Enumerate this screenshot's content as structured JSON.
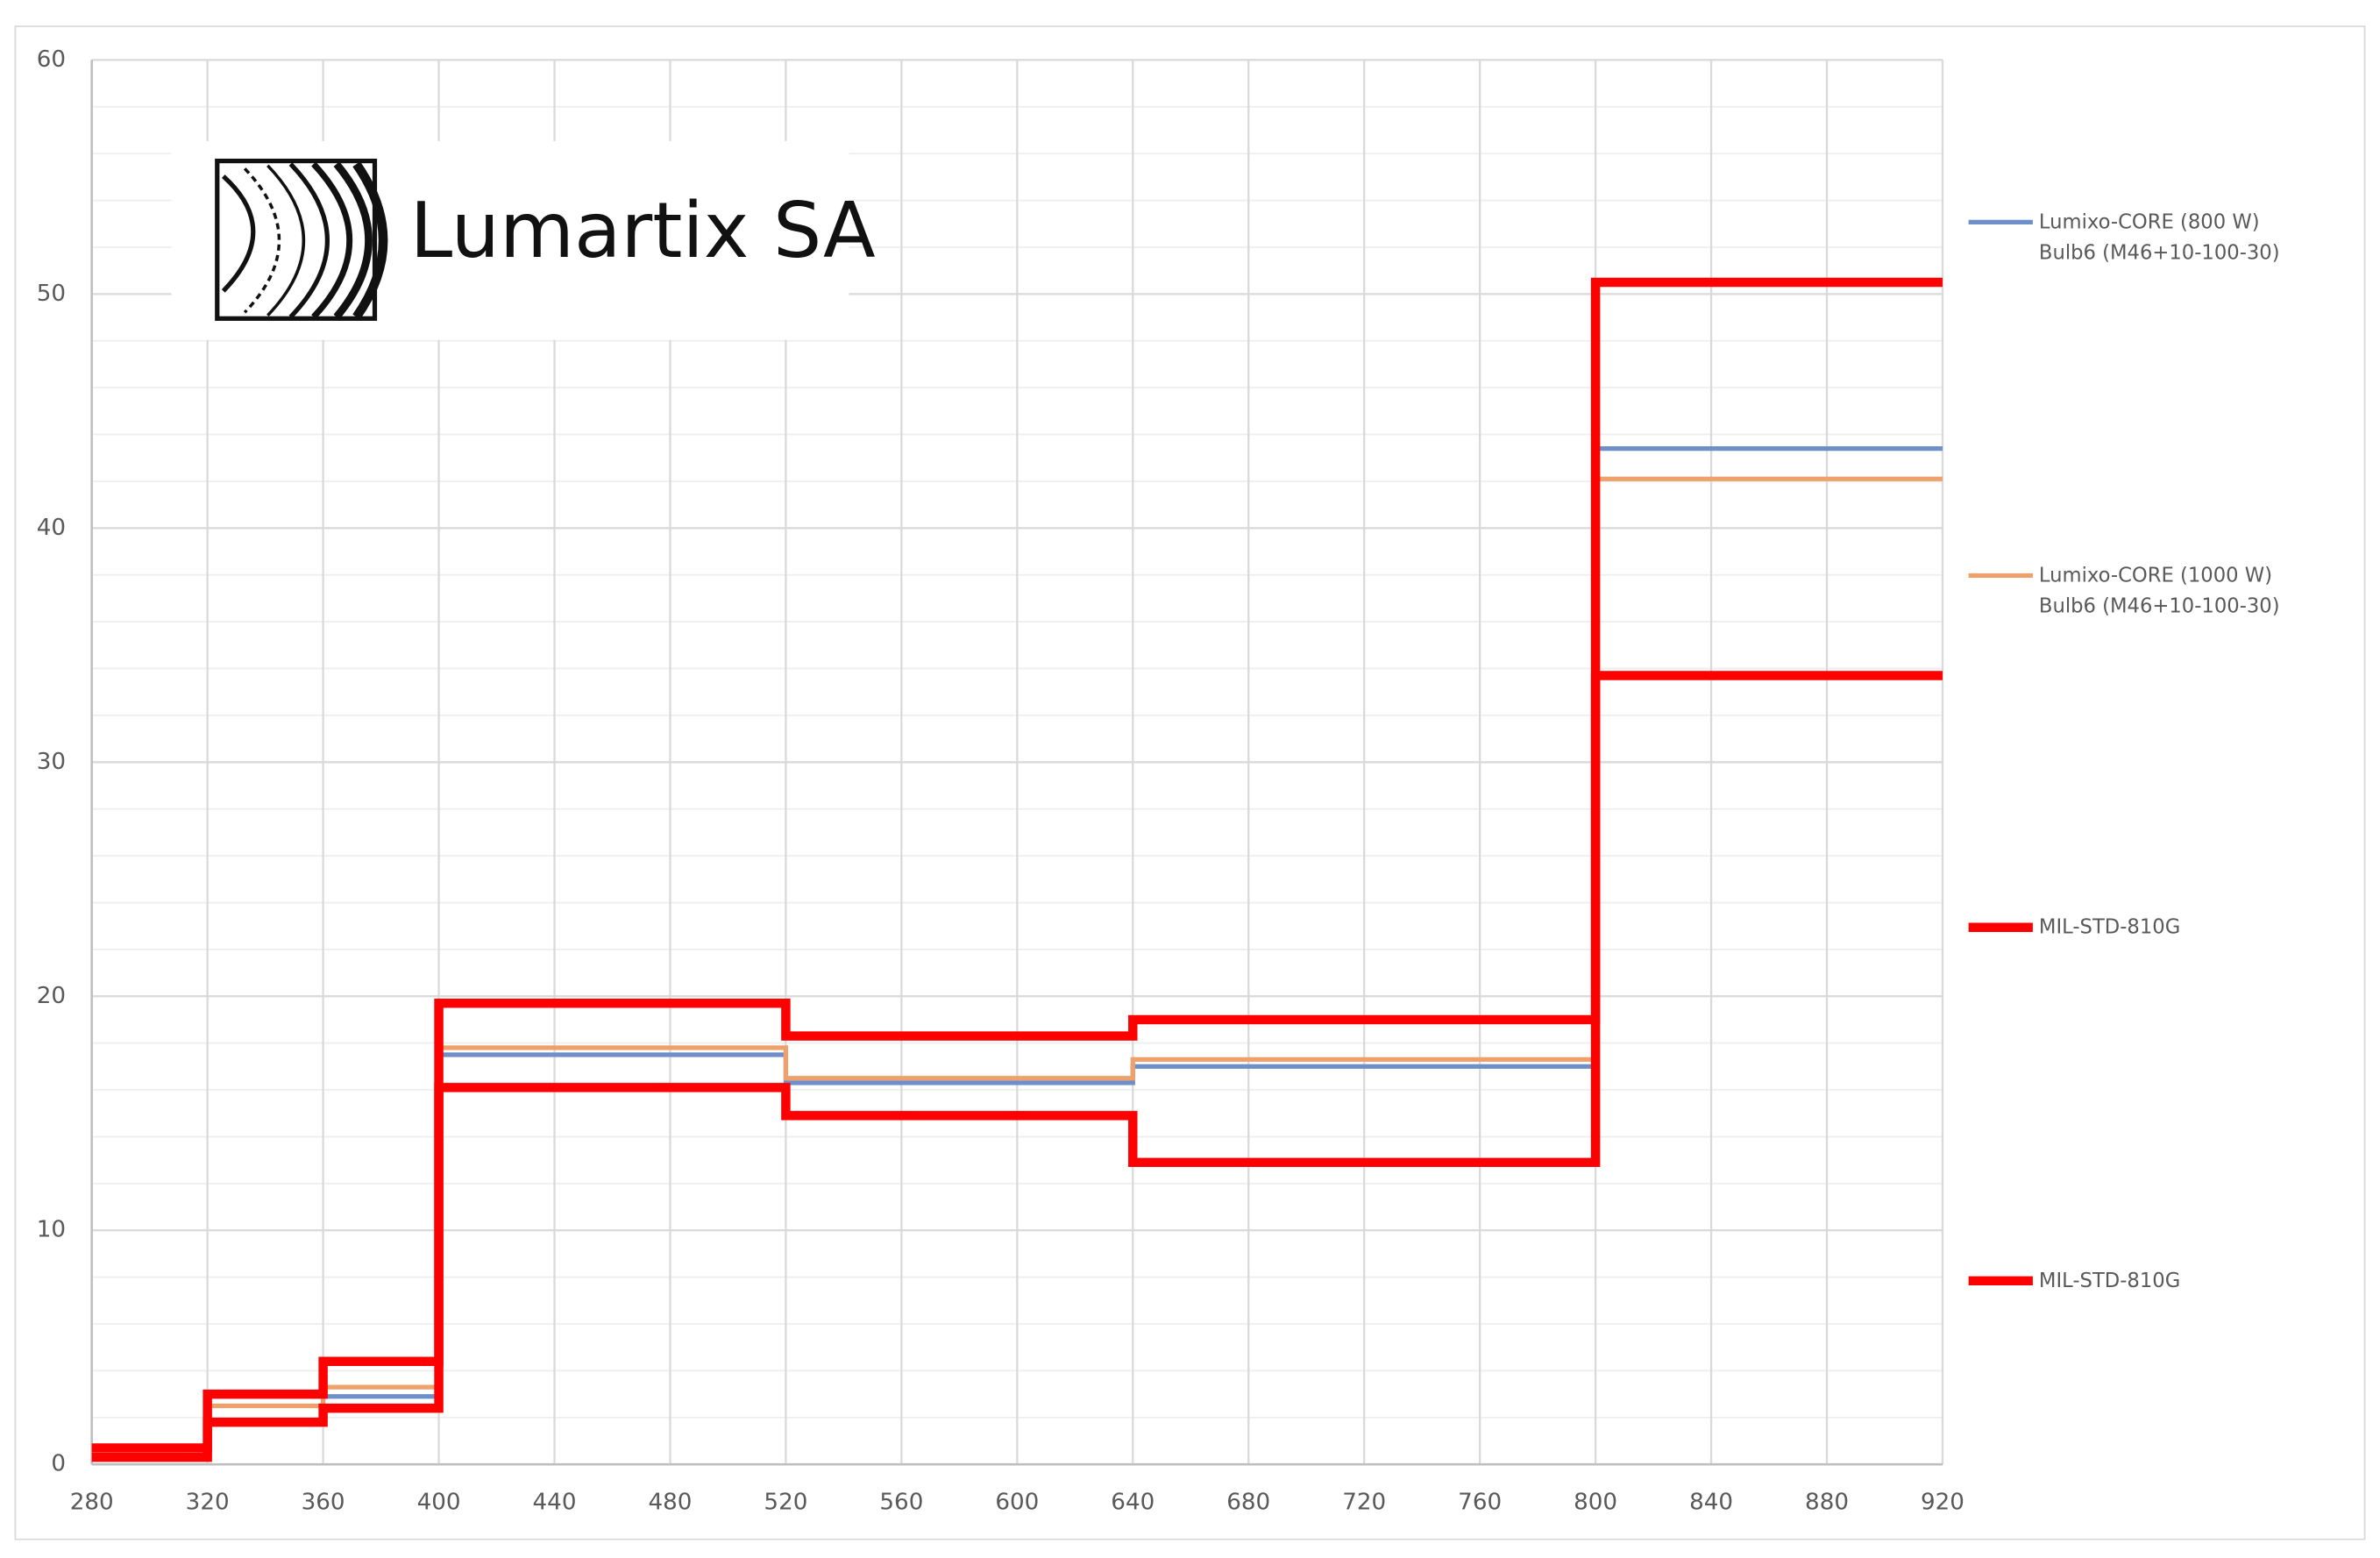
{
  "logo": "Lumartix SA",
  "chart_data": {
    "type": "step",
    "xlim": [
      280,
      920
    ],
    "xticks": [
      280,
      320,
      360,
      400,
      440,
      480,
      520,
      560,
      600,
      640,
      680,
      720,
      760,
      800,
      840,
      880,
      920
    ],
    "ylim": [
      0,
      60
    ],
    "yticks": [
      0,
      10,
      20,
      30,
      40,
      50,
      60
    ],
    "yminorticks": [
      2,
      4,
      6,
      8,
      12,
      14,
      16,
      18,
      22,
      24,
      26,
      28,
      32,
      34,
      36,
      38,
      42,
      44,
      46,
      48,
      52,
      54,
      56,
      58
    ],
    "grid": true,
    "legend": "right",
    "series": [
      {
        "name": "Lumixo-CORE (800 W)\nBulb6 (M46+10-100-30)",
        "color": "#6f8fc9",
        "width": 3,
        "bins": [
          360,
          400,
          520,
          640,
          800,
          920
        ],
        "values": [
          2.9,
          17.5,
          16.3,
          17.0,
          43.4
        ]
      },
      {
        "name": "Lumixo-CORE (1000 W)\nBulb6 (M46+10-100-30)",
        "color": "#f0a06a",
        "width": 3,
        "bins": [
          320,
          360,
          400,
          520,
          640,
          800,
          920
        ],
        "values": [
          2.5,
          3.3,
          17.8,
          16.5,
          17.3,
          42.1
        ]
      },
      {
        "name": "MIL-STD-810G",
        "color": "#ff0000",
        "width": 6,
        "bins": [
          280,
          320,
          360,
          400,
          520,
          640,
          800,
          920
        ],
        "values": [
          0.7,
          3.0,
          4.4,
          19.7,
          18.3,
          19.0,
          50.5
        ]
      },
      {
        "name": "MIL-STD-810G",
        "color": "#ff0000",
        "width": 6,
        "bins": [
          280,
          320,
          360,
          400,
          520,
          640,
          800,
          920
        ],
        "values": [
          0.3,
          1.8,
          2.4,
          16.1,
          14.9,
          12.9,
          33.7
        ]
      }
    ]
  }
}
